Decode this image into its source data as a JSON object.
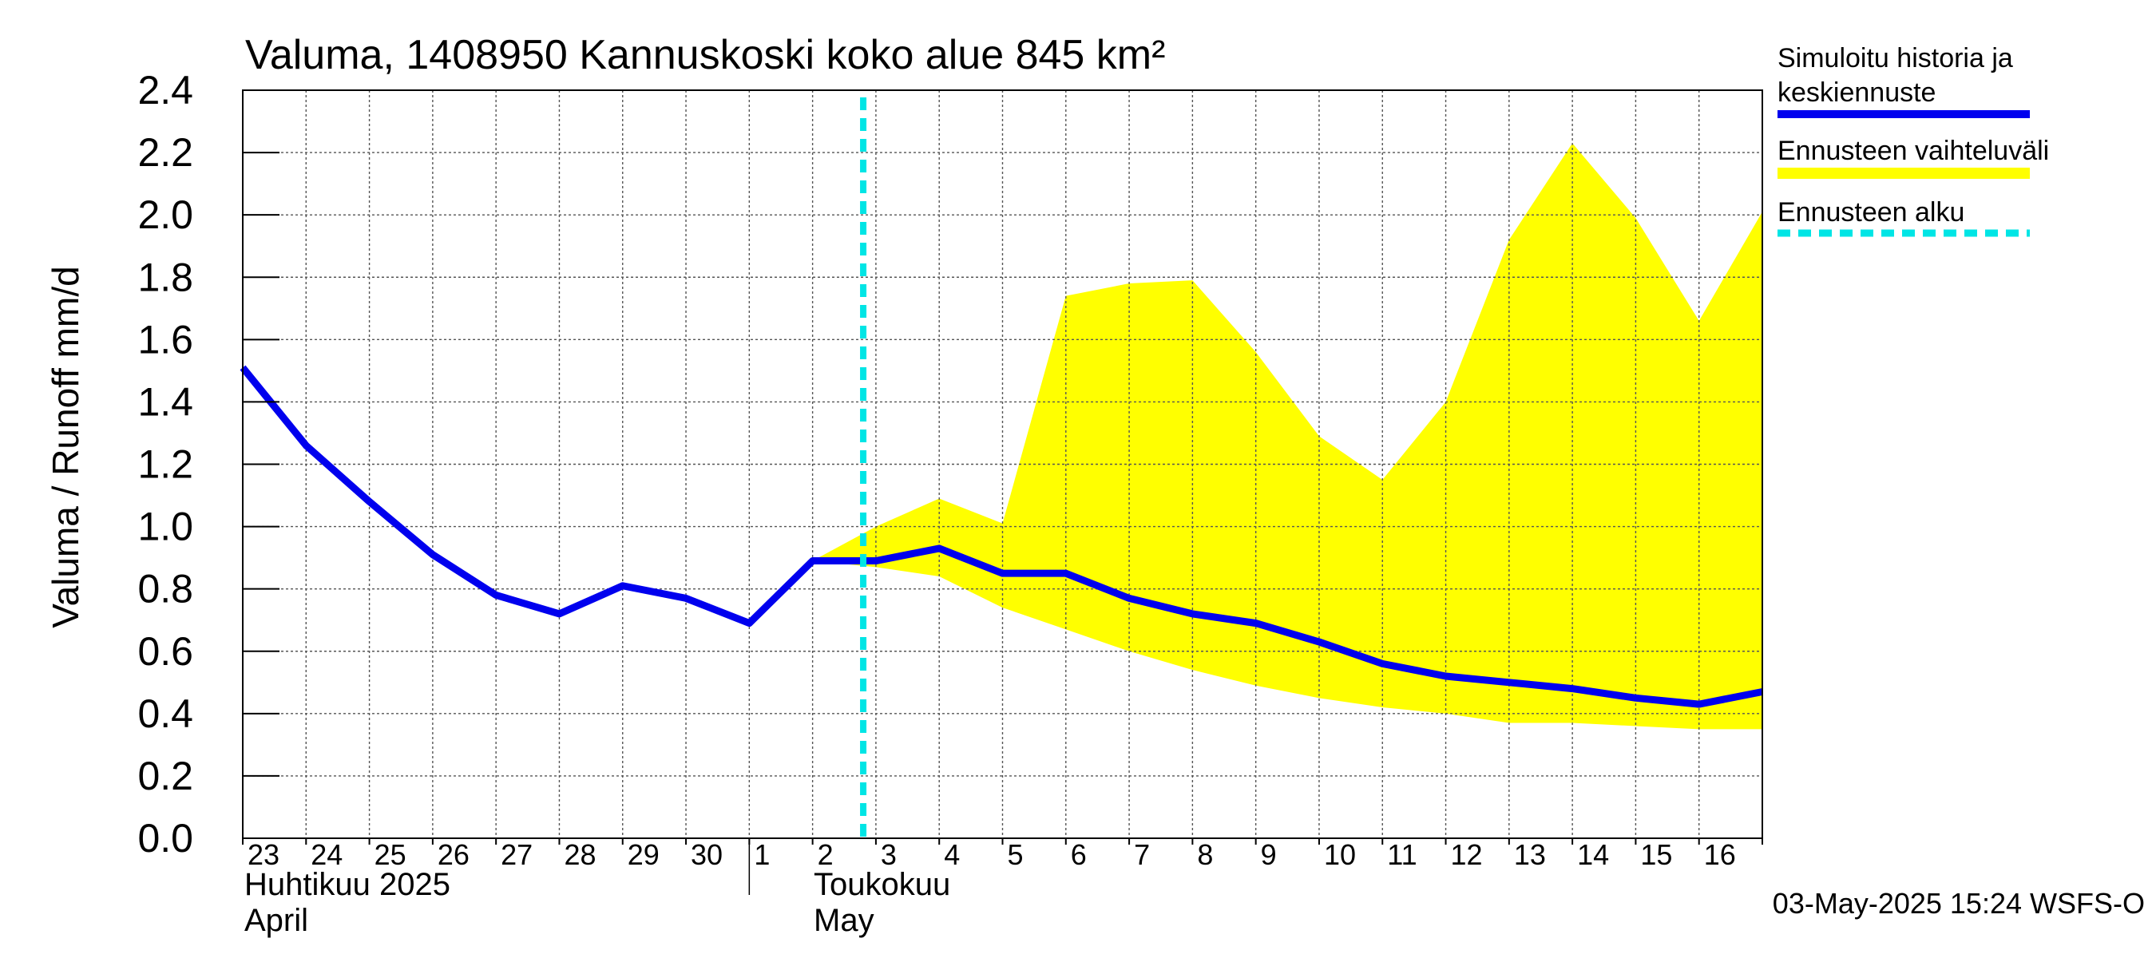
{
  "chart_data": {
    "type": "line",
    "title": "Valuma, 1408950 Kannuskoski koko alue 845 km²",
    "ylabel": "Valuma / Runoff     mm/d",
    "ylim": [
      0.0,
      2.4
    ],
    "yticks": [
      "0.0",
      "0.2",
      "0.4",
      "0.6",
      "0.8",
      "1.0",
      "1.2",
      "1.4",
      "1.6",
      "1.8",
      "2.0",
      "2.2",
      "2.4"
    ],
    "x_day_labels": [
      "23",
      "24",
      "25",
      "26",
      "27",
      "28",
      "29",
      "30",
      "1",
      "2",
      "3",
      "4",
      "5",
      "6",
      "7",
      "8",
      "9",
      "10",
      "11",
      "12",
      "13",
      "14",
      "15",
      "16"
    ],
    "month_labels": [
      {
        "line1": "Huhtikuu  2025",
        "line2": "April"
      },
      {
        "line1": "Toukokuu",
        "line2": "May"
      }
    ],
    "grid": true,
    "legend_position": "right",
    "legend": [
      {
        "label_line1": "Simuloitu historia ja",
        "label_line2": "keskiennuste",
        "color": "#0000ee"
      },
      {
        "label_line1": "Ennusteen vaihteluväli",
        "label_line2": "",
        "color": "#ffff00"
      },
      {
        "label_line1": "Ennusteen alku",
        "label_line2": "",
        "color": "#00e5e5"
      }
    ],
    "forecast_start_day_index": 9.8,
    "series": [
      {
        "name": "Simuloitu historia ja keskiennuste",
        "color": "#0000ee",
        "x": [
          0,
          1,
          2,
          3,
          4,
          5,
          6,
          7,
          8,
          9,
          10,
          11,
          12,
          13,
          14,
          15,
          16,
          17,
          18,
          19,
          20,
          21,
          22,
          23,
          24
        ],
        "values": [
          1.51,
          1.26,
          1.08,
          0.91,
          0.78,
          0.72,
          0.81,
          0.77,
          0.69,
          0.89,
          0.89,
          0.93,
          0.85,
          0.85,
          0.77,
          0.72,
          0.69,
          0.63,
          0.56,
          0.52,
          0.5,
          0.48,
          0.45,
          0.43,
          0.47
        ]
      }
    ],
    "band": {
      "name": "Ennusteen vaihteluväli",
      "color": "#ffff00",
      "x": [
        9,
        10,
        11,
        12,
        13,
        14,
        15,
        16,
        17,
        18,
        19,
        20,
        21,
        22,
        23,
        24
      ],
      "upper": [
        0.89,
        1.0,
        1.09,
        1.01,
        1.74,
        1.78,
        1.79,
        1.56,
        1.29,
        1.15,
        1.4,
        1.92,
        2.23,
        1.99,
        1.66,
        2.01
      ],
      "lower": [
        0.89,
        0.87,
        0.84,
        0.74,
        0.67,
        0.6,
        0.54,
        0.49,
        0.45,
        0.42,
        0.4,
        0.37,
        0.37,
        0.36,
        0.35,
        0.35
      ]
    },
    "footer": "03-May-2025 15:24 WSFS-O"
  }
}
